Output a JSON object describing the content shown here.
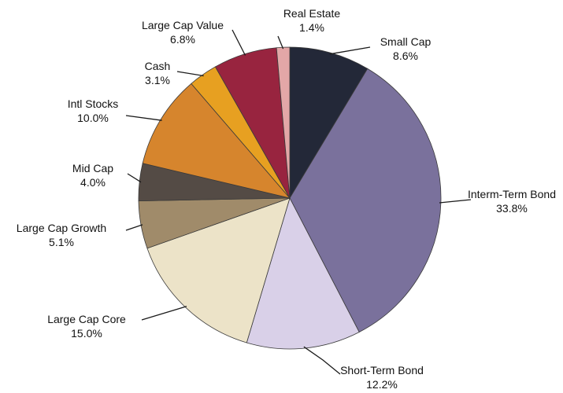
{
  "chart_data": {
    "type": "pie",
    "title": "",
    "start_angle_deg": 0,
    "direction": "clockwise",
    "slices": [
      {
        "label": "Small Cap",
        "value_text": "8.6%",
        "value": 8.6,
        "color": "#232838"
      },
      {
        "label": "Interm-Term Bond",
        "value_text": "33.8%",
        "value": 33.8,
        "color": "#7a719c"
      },
      {
        "label": "Short-Term Bond",
        "value_text": "12.2%",
        "value": 12.2,
        "color": "#d9d0e8"
      },
      {
        "label": "Large Cap Core",
        "value_text": "15.0%",
        "value": 15.0,
        "color": "#ece3c8"
      },
      {
        "label": "Large Cap Growth",
        "value_text": "5.1%",
        "value": 5.1,
        "color": "#a08b6a"
      },
      {
        "label": "Mid Cap",
        "value_text": "4.0%",
        "value": 4.0,
        "color": "#544b45"
      },
      {
        "label": "Intl Stocks",
        "value_text": "10.0%",
        "value": 10.0,
        "color": "#d6852d"
      },
      {
        "label": "Cash",
        "value_text": "3.1%",
        "value": 3.1,
        "color": "#e7a021"
      },
      {
        "label": "Large Cap Value",
        "value_text": "6.8%",
        "value": 6.8,
        "color": "#98243f"
      },
      {
        "label": "Real Estate",
        "value_text": "1.4%",
        "value": 1.4,
        "color": "#e3a7a7"
      }
    ]
  }
}
